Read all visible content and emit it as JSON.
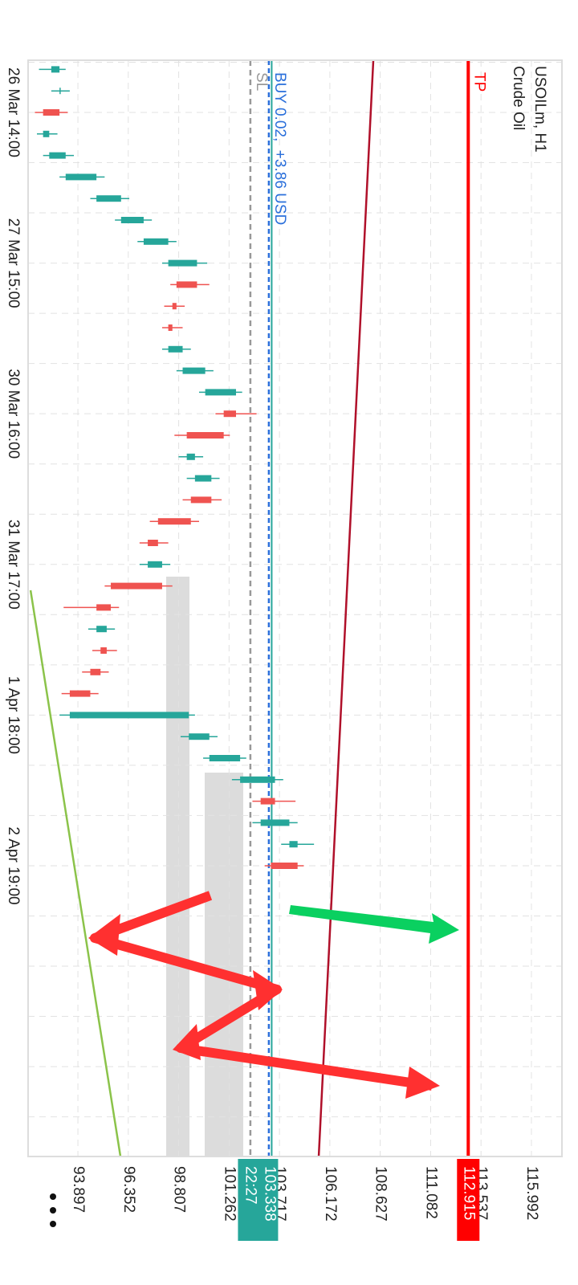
{
  "chart_data": {
    "type": "candlestick",
    "title": "USOILm, H1",
    "subtitle": "Crude Oil",
    "categories": [
      null,
      null,
      "26 Mar 14:00",
      null,
      null,
      null,
      null,
      null,
      null,
      "27 Mar 15:00",
      null,
      null,
      null,
      null,
      null,
      null,
      "30 Mar 16:00",
      null,
      null,
      null,
      null,
      null,
      null,
      "31 Mar 17:00",
      null,
      null,
      null,
      null,
      null,
      null,
      "1 Apr 18:00",
      null,
      null,
      null,
      null,
      null,
      null,
      "2 Apr 19:00"
    ],
    "open": [
      92.6,
      93.0,
      93.0,
      92.2,
      92.5,
      93.3,
      94.8,
      96.0,
      97.1,
      98.3,
      99.7,
      98.7,
      98.5,
      98.3,
      99.0,
      100.1,
      101.6,
      101.0,
      99.2,
      99.6,
      100.4,
      99.4,
      97.8,
      97.3,
      98.0,
      95.5,
      94.8,
      95.3,
      95.0,
      94.5,
      93.5,
      99.3,
      100.3,
      101.8,
      103.5,
      102.8,
      104.2,
      104.6
    ],
    "high": [
      93.3,
      93.5,
      93.4,
      92.9,
      93.7,
      95.2,
      96.4,
      97.5,
      98.7,
      100.2,
      100.3,
      99.1,
      99.0,
      99.4,
      100.5,
      101.9,
      102.6,
      101.3,
      100.0,
      100.8,
      100.9,
      99.8,
      98.3,
      98.4,
      98.5,
      95.9,
      95.7,
      95.8,
      95.4,
      94.9,
      99.6,
      100.7,
      102.1,
      103.9,
      104.5,
      104.6,
      105.4,
      104.9
    ],
    "low": [
      92.0,
      92.6,
      91.8,
      91.9,
      92.2,
      93.0,
      94.5,
      95.7,
      96.8,
      98.0,
      98.4,
      98.1,
      98.0,
      98.0,
      98.7,
      99.8,
      100.6,
      98.6,
      98.8,
      99.2,
      99.0,
      97.4,
      96.9,
      96.9,
      95.2,
      93.2,
      94.4,
      94.6,
      94.1,
      93.1,
      93.0,
      98.9,
      100.0,
      101.4,
      102.4,
      102.4,
      103.8,
      103.0
    ],
    "close": [
      93.0,
      93.0,
      92.2,
      92.5,
      93.3,
      94.8,
      96.0,
      97.1,
      98.3,
      99.7,
      98.7,
      98.5,
      98.3,
      99.0,
      100.1,
      101.6,
      101.0,
      99.2,
      99.6,
      100.4,
      99.4,
      97.8,
      97.3,
      98.0,
      95.5,
      94.8,
      95.3,
      95.0,
      94.5,
      93.5,
      99.3,
      100.3,
      101.8,
      103.5,
      102.8,
      104.2,
      104.6,
      103.3
    ],
    "up_color": "#26a69a",
    "down_color": "#ef5350",
    "ylim": [
      91.47,
      117.48
    ],
    "yticks": [
      93.897,
      96.352,
      98.807,
      101.262,
      103.717,
      106.172,
      108.627,
      111.082,
      113.537,
      115.992
    ],
    "grid": true,
    "price_lines": [
      {
        "name": "TP",
        "value": 112.915,
        "color": "#ff0000"
      },
      {
        "name": "SL",
        "value": 102.3,
        "color": "#999999"
      },
      {
        "name": "BUY 0.02,  +3.86 USD",
        "value": 103.2,
        "color": "#2a6fdb"
      }
    ],
    "current_price": {
      "value": 103.338,
      "time": "22:27",
      "color": "#26a69a"
    },
    "trendlines": [
      {
        "color": "#b0102a",
        "values": [
          108.29,
          105.63
        ]
      },
      {
        "color": "#8bc34a",
        "values": [
          91.59,
          95.97
        ]
      }
    ]
  }
}
